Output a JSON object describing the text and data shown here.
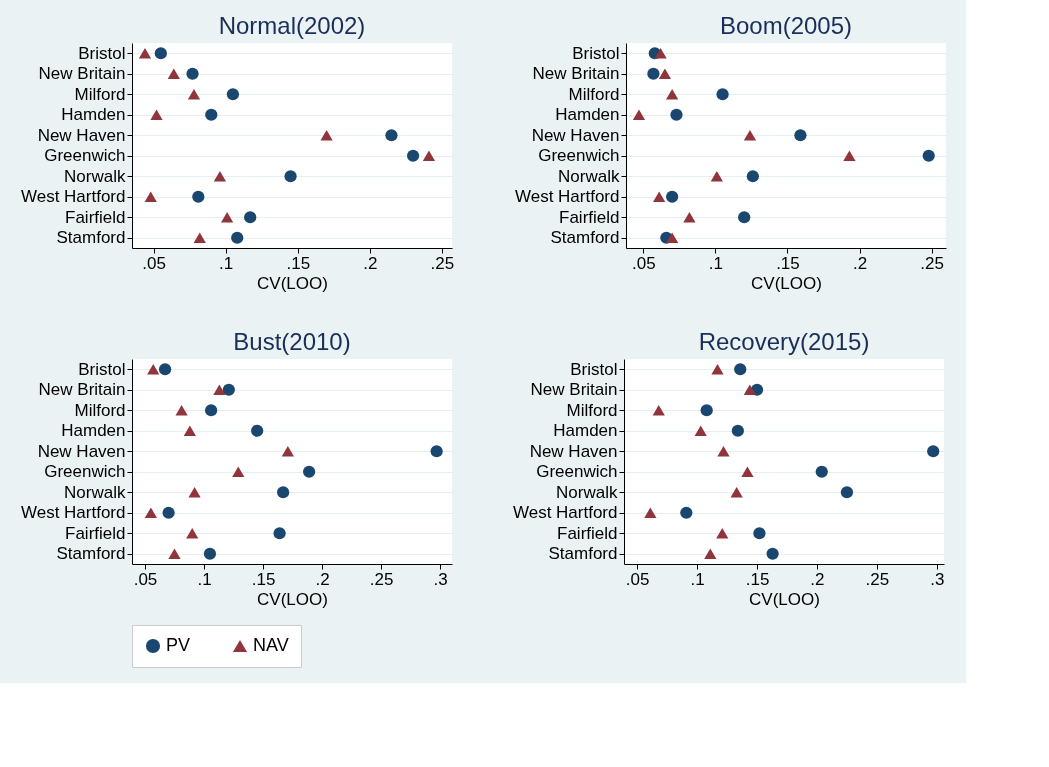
{
  "chart_data": [
    {
      "type": "scatter",
      "title": "Normal(2002)",
      "xlabel": "CV(LOO)",
      "orientation": "horizontal",
      "grid": "y",
      "legend": "bottom",
      "categories": [
        "Bristol",
        "New Britain",
        "Milford",
        "Hamden",
        "New Haven",
        "Greenwich",
        "Norwalk",
        "West Hartford",
        "Fairfield",
        "Stamford"
      ],
      "xlim": [
        0.035,
        0.257
      ],
      "xticks": [
        {
          "value": 0.05,
          "label": ".05"
        },
        {
          "value": 0.1,
          "label": ".1"
        },
        {
          "value": 0.15,
          "label": ".15"
        },
        {
          "value": 0.2,
          "label": ".2"
        },
        {
          "value": 0.25,
          "label": ".25"
        }
      ],
      "series": [
        {
          "name": "PV",
          "color": "#1a476f",
          "marker": "circle",
          "values": [
            0.055,
            0.077,
            0.105,
            0.09,
            0.215,
            0.23,
            0.145,
            0.081,
            0.117,
            0.108
          ]
        },
        {
          "name": "NAV",
          "color": "#90353b",
          "marker": "triangle",
          "values": [
            0.044,
            0.064,
            0.078,
            0.052,
            0.17,
            0.241,
            0.096,
            0.048,
            0.101,
            0.082
          ]
        }
      ]
    },
    {
      "type": "scatter",
      "title": "Boom(2005)",
      "xlabel": "CV(LOO)",
      "orientation": "horizontal",
      "grid": "y",
      "legend": "bottom",
      "categories": [
        "Bristol",
        "New Britain",
        "Milford",
        "Hamden",
        "New Haven",
        "Greenwich",
        "Norwalk",
        "West Hartford",
        "Fairfield",
        "Stamford"
      ],
      "xlim": [
        0.038,
        0.26
      ],
      "xticks": [
        {
          "value": 0.05,
          "label": ".05"
        },
        {
          "value": 0.1,
          "label": ".1"
        },
        {
          "value": 0.15,
          "label": ".15"
        },
        {
          "value": 0.2,
          "label": ".2"
        },
        {
          "value": 0.25,
          "label": ".25"
        }
      ],
      "series": [
        {
          "name": "PV",
          "color": "#1a476f",
          "marker": "circle",
          "values": [
            0.058,
            0.057,
            0.105,
            0.073,
            0.159,
            0.248,
            0.126,
            0.07,
            0.12,
            0.066
          ]
        },
        {
          "name": "NAV",
          "color": "#90353b",
          "marker": "triangle",
          "values": [
            0.062,
            0.065,
            0.07,
            0.047,
            0.124,
            0.193,
            0.101,
            0.061,
            0.082,
            0.07
          ]
        }
      ]
    },
    {
      "type": "scatter",
      "title": "Bust(2010)",
      "xlabel": "CV(LOO)",
      "orientation": "horizontal",
      "grid": "y",
      "legend": "bottom",
      "categories": [
        "Bristol",
        "New Britain",
        "Milford",
        "Hamden",
        "New Haven",
        "Greenwich",
        "Norwalk",
        "West Hartford",
        "Fairfield",
        "Stamford"
      ],
      "xlim": [
        0.039,
        0.31
      ],
      "xticks": [
        {
          "value": 0.05,
          "label": ".05"
        },
        {
          "value": 0.1,
          "label": ".1"
        },
        {
          "value": 0.15,
          "label": ".15"
        },
        {
          "value": 0.2,
          "label": ".2"
        },
        {
          "value": 0.25,
          "label": ".25"
        },
        {
          "value": 0.3,
          "label": ".3"
        }
      ],
      "series": [
        {
          "name": "PV",
          "color": "#1a476f",
          "marker": "circle",
          "values": [
            0.067,
            0.121,
            0.106,
            0.145,
            0.297,
            0.189,
            0.167,
            0.07,
            0.164,
            0.105
          ]
        },
        {
          "name": "NAV",
          "color": "#90353b",
          "marker": "triangle",
          "values": [
            0.057,
            0.113,
            0.081,
            0.088,
            0.171,
            0.129,
            0.092,
            0.055,
            0.09,
            0.075
          ]
        }
      ]
    },
    {
      "type": "scatter",
      "title": "Recovery(2015)",
      "xlabel": "CV(LOO)",
      "orientation": "horizontal",
      "grid": "y",
      "legend": "bottom",
      "categories": [
        "Bristol",
        "New Britain",
        "Milford",
        "Hamden",
        "New Haven",
        "Greenwich",
        "Norwalk",
        "West Hartford",
        "Fairfield",
        "Stamford"
      ],
      "xlim": [
        0.039,
        0.306
      ],
      "xticks": [
        {
          "value": 0.05,
          "label": ".05"
        },
        {
          "value": 0.1,
          "label": ".1"
        },
        {
          "value": 0.15,
          "label": ".15"
        },
        {
          "value": 0.2,
          "label": ".2"
        },
        {
          "value": 0.25,
          "label": ".25"
        },
        {
          "value": 0.3,
          "label": ".3"
        }
      ],
      "series": [
        {
          "name": "PV",
          "color": "#1a476f",
          "marker": "circle",
          "values": [
            0.136,
            0.15,
            0.108,
            0.134,
            0.297,
            0.204,
            0.225,
            0.091,
            0.152,
            0.163
          ]
        },
        {
          "name": "NAV",
          "color": "#90353b",
          "marker": "triangle",
          "values": [
            0.117,
            0.144,
            0.068,
            0.103,
            0.122,
            0.142,
            0.133,
            0.061,
            0.121,
            0.111
          ]
        }
      ]
    }
  ]
}
